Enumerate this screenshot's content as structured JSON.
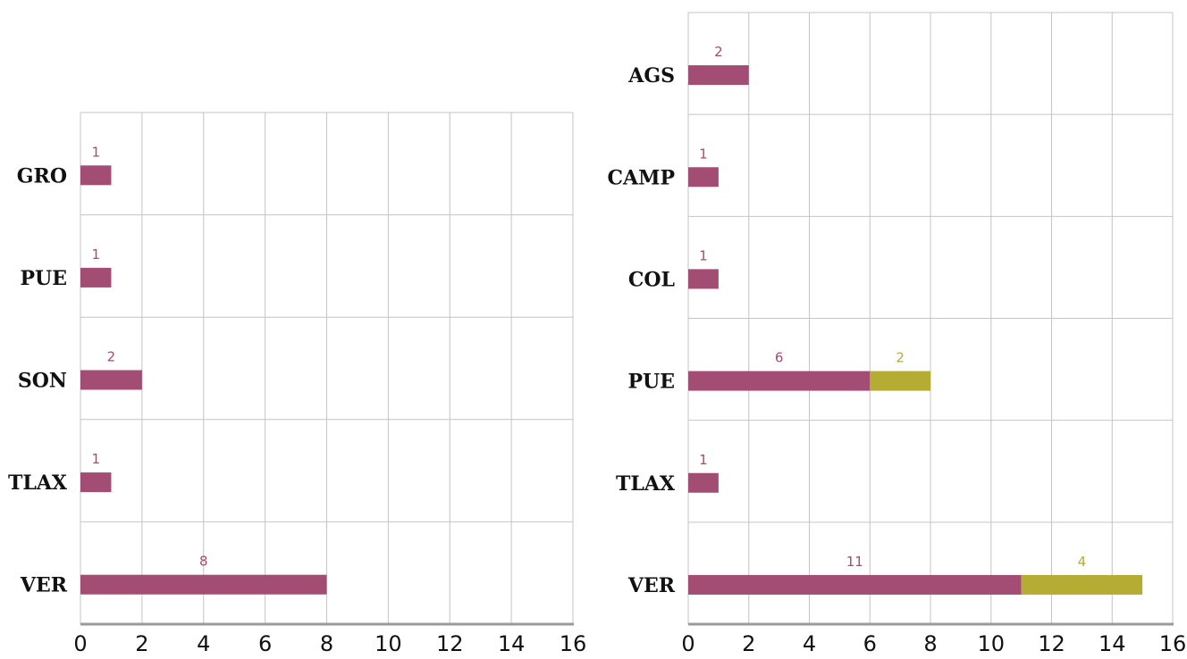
{
  "chart_data": [
    {
      "type": "bar",
      "orientation": "horizontal",
      "stacked": true,
      "categories": [
        "GRO",
        "PUE",
        "SON",
        "TLAX",
        "VER"
      ],
      "series": [
        {
          "values": [
            1,
            1,
            2,
            1,
            8
          ],
          "color": "#a34d74"
        }
      ],
      "xlim": [
        0,
        16
      ],
      "xticks": [
        0,
        2,
        4,
        6,
        8,
        10,
        12,
        14,
        16
      ],
      "grid": true
    },
    {
      "type": "bar",
      "orientation": "horizontal",
      "stacked": true,
      "categories": [
        "AGS",
        "CAMP",
        "COL",
        "PUE",
        "TLAX",
        "VER"
      ],
      "series": [
        {
          "values": [
            2,
            1,
            1,
            6,
            1,
            11
          ],
          "color": "#a34d74"
        },
        {
          "values": [
            0,
            0,
            0,
            2,
            0,
            4
          ],
          "color": "#b5ac34"
        }
      ],
      "xlim": [
        0,
        16
      ],
      "xticks": [
        0,
        2,
        4,
        6,
        8,
        10,
        12,
        14,
        16
      ],
      "grid": true
    }
  ]
}
